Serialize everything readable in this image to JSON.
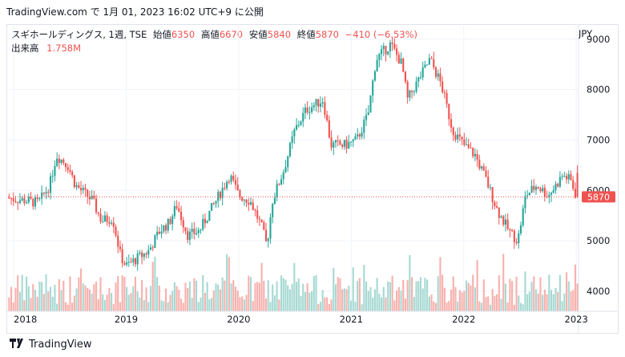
{
  "header": {
    "text": "TradingView.com で 1月 01, 2023 16:02 UTC+9 に公開"
  },
  "legend": {
    "symbol": "スギホールディングス, 1週, TSE",
    "open_label": "始値",
    "open": "6350",
    "high_label": "高値",
    "high": "6670",
    "low_label": "安値",
    "low": "5840",
    "close_label": "終値",
    "close": "5870",
    "change": "−410 (−6.53%)",
    "volume_label": "出来高",
    "volume": "1.758M"
  },
  "currency": "JPY",
  "last_price_label": "5870",
  "footer": {
    "brand": "TradingView"
  },
  "colors": {
    "up": "#26a69a",
    "down": "#ef5350",
    "up_vol": "#a7d9d3",
    "down_vol": "#f7b1ad",
    "grid": "#f0f3fa"
  },
  "chart_data": {
    "type": "candlestick",
    "interval": "1週",
    "currency": "JPY",
    "y_ticks": [
      4000,
      5000,
      6000,
      7000,
      8000,
      9000
    ],
    "x_ticks": [
      "2018",
      "2019",
      "2020",
      "2021",
      "2022",
      "2023"
    ],
    "ylim": [
      3600,
      9300
    ],
    "x_range": [
      2017.95,
      2023.02
    ],
    "last_price": 5870,
    "price_path": [
      [
        2017.95,
        5850
      ],
      [
        2018.1,
        5800
      ],
      [
        2018.22,
        5750
      ],
      [
        2018.32,
        6100
      ],
      [
        2018.38,
        6700
      ],
      [
        2018.48,
        6500
      ],
      [
        2018.55,
        6100
      ],
      [
        2018.7,
        5800
      ],
      [
        2018.78,
        5400
      ],
      [
        2018.88,
        5450
      ],
      [
        2018.95,
        4700
      ],
      [
        2019.0,
        4500
      ],
      [
        2019.1,
        4650
      ],
      [
        2019.2,
        4800
      ],
      [
        2019.3,
        5200
      ],
      [
        2019.38,
        5350
      ],
      [
        2019.45,
        5700
      ],
      [
        2019.55,
        5100
      ],
      [
        2019.65,
        5200
      ],
      [
        2019.8,
        5800
      ],
      [
        2019.92,
        6300
      ],
      [
        2020.0,
        5900
      ],
      [
        2020.1,
        5800
      ],
      [
        2020.2,
        5300
      ],
      [
        2020.25,
        4900
      ],
      [
        2020.3,
        5800
      ],
      [
        2020.4,
        6400
      ],
      [
        2020.5,
        7200
      ],
      [
        2020.6,
        7600
      ],
      [
        2020.75,
        7800
      ],
      [
        2020.82,
        6900
      ],
      [
        2020.95,
        6900
      ],
      [
        2021.05,
        7000
      ],
      [
        2021.15,
        7500
      ],
      [
        2021.22,
        8600
      ],
      [
        2021.35,
        8900
      ],
      [
        2021.45,
        8500
      ],
      [
        2021.5,
        7800
      ],
      [
        2021.6,
        8200
      ],
      [
        2021.7,
        8600
      ],
      [
        2021.8,
        8100
      ],
      [
        2021.9,
        7200
      ],
      [
        2022.0,
        6900
      ],
      [
        2022.1,
        6700
      ],
      [
        2022.2,
        6200
      ],
      [
        2022.3,
        5600
      ],
      [
        2022.4,
        5200
      ],
      [
        2022.48,
        5000
      ],
      [
        2022.55,
        5900
      ],
      [
        2022.65,
        6100
      ],
      [
        2022.75,
        5900
      ],
      [
        2022.82,
        6100
      ],
      [
        2022.88,
        6300
      ],
      [
        2022.95,
        6200
      ],
      [
        2023.0,
        5870
      ]
    ],
    "last_candle": {
      "open": 6350,
      "high": 6670,
      "low": 5840,
      "close": 5870,
      "volume": "1.758M"
    }
  }
}
